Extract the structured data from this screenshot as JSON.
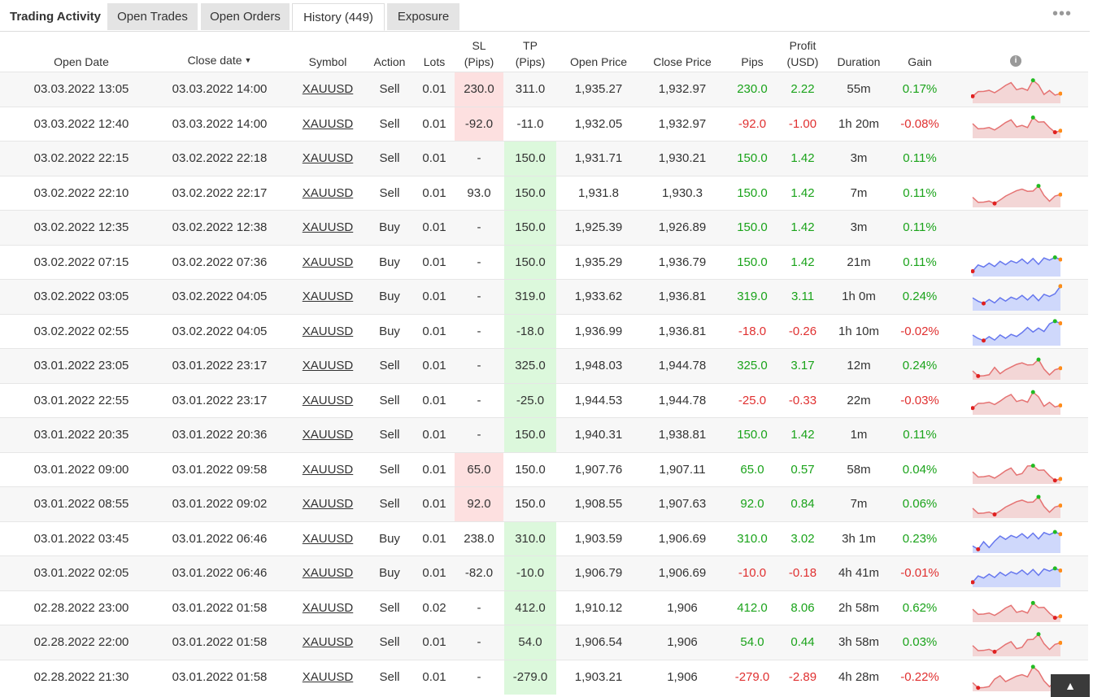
{
  "tabs": {
    "title": "Trading Activity",
    "items": [
      "Open Trades",
      "Open Orders",
      "History (449)",
      "Exposure"
    ],
    "active_index": 2,
    "more": "•••"
  },
  "table": {
    "headers": {
      "open_date": "Open Date",
      "close_date": "Close date",
      "symbol": "Symbol",
      "action": "Action",
      "lots": "Lots",
      "sl_1": "SL",
      "sl_2": "(Pips)",
      "tp_1": "TP",
      "tp_2": "(Pips)",
      "open_price": "Open Price",
      "close_price": "Close Price",
      "pips": "Pips",
      "profit_1": "Profit",
      "profit_2": "(USD)",
      "duration": "Duration",
      "gain": "Gain",
      "info": "i"
    },
    "sort_indicator": "▼",
    "rows": [
      {
        "open": "03.03.2022 13:05",
        "close": "03.03.2022 14:00",
        "symbol": "XAUUSD",
        "action": "Sell",
        "lots": "0.01",
        "sl": "230.0",
        "tp": "311.0",
        "open_price": "1,935.27",
        "close_price": "1,932.97",
        "pips": "230.0",
        "profit": "2.22",
        "duration": "55m",
        "gain": "0.17%",
        "sl_hl": "red",
        "tp_hl": "",
        "sign": "pos",
        "chart": "sell"
      },
      {
        "open": "03.03.2022 12:40",
        "close": "03.03.2022 14:00",
        "symbol": "XAUUSD",
        "action": "Sell",
        "lots": "0.01",
        "sl": "-92.0",
        "tp": "-11.0",
        "open_price": "1,932.05",
        "close_price": "1,932.97",
        "pips": "-92.0",
        "profit": "-1.00",
        "duration": "1h 20m",
        "gain": "-0.08%",
        "sl_hl": "red",
        "tp_hl": "",
        "sign": "neg",
        "chart": "sell"
      },
      {
        "open": "03.02.2022 22:15",
        "close": "03.02.2022 22:18",
        "symbol": "XAUUSD",
        "action": "Sell",
        "lots": "0.01",
        "sl": "-",
        "tp": "150.0",
        "open_price": "1,931.71",
        "close_price": "1,930.21",
        "pips": "150.0",
        "profit": "1.42",
        "duration": "3m",
        "gain": "0.11%",
        "sl_hl": "",
        "tp_hl": "green",
        "sign": "pos",
        "chart": ""
      },
      {
        "open": "03.02.2022 22:10",
        "close": "03.02.2022 22:17",
        "symbol": "XAUUSD",
        "action": "Sell",
        "lots": "0.01",
        "sl": "93.0",
        "tp": "150.0",
        "open_price": "1,931.8",
        "close_price": "1,930.3",
        "pips": "150.0",
        "profit": "1.42",
        "duration": "7m",
        "gain": "0.11%",
        "sl_hl": "",
        "tp_hl": "green",
        "sign": "pos",
        "chart": "sell"
      },
      {
        "open": "03.02.2022 12:35",
        "close": "03.02.2022 12:38",
        "symbol": "XAUUSD",
        "action": "Buy",
        "lots": "0.01",
        "sl": "-",
        "tp": "150.0",
        "open_price": "1,925.39",
        "close_price": "1,926.89",
        "pips": "150.0",
        "profit": "1.42",
        "duration": "3m",
        "gain": "0.11%",
        "sl_hl": "",
        "tp_hl": "green",
        "sign": "pos",
        "chart": ""
      },
      {
        "open": "03.02.2022 07:15",
        "close": "03.02.2022 07:36",
        "symbol": "XAUUSD",
        "action": "Buy",
        "lots": "0.01",
        "sl": "-",
        "tp": "150.0",
        "open_price": "1,935.29",
        "close_price": "1,936.79",
        "pips": "150.0",
        "profit": "1.42",
        "duration": "21m",
        "gain": "0.11%",
        "sl_hl": "",
        "tp_hl": "green",
        "sign": "pos",
        "chart": "buy"
      },
      {
        "open": "03.02.2022 03:05",
        "close": "03.02.2022 04:05",
        "symbol": "XAUUSD",
        "action": "Buy",
        "lots": "0.01",
        "sl": "-",
        "tp": "319.0",
        "open_price": "1,933.62",
        "close_price": "1,936.81",
        "pips": "319.0",
        "profit": "3.11",
        "duration": "1h 0m",
        "gain": "0.24%",
        "sl_hl": "",
        "tp_hl": "green",
        "sign": "pos",
        "chart": "buy"
      },
      {
        "open": "03.02.2022 02:55",
        "close": "03.02.2022 04:05",
        "symbol": "XAUUSD",
        "action": "Buy",
        "lots": "0.01",
        "sl": "-",
        "tp": "-18.0",
        "open_price": "1,936.99",
        "close_price": "1,936.81",
        "pips": "-18.0",
        "profit": "-0.26",
        "duration": "1h 10m",
        "gain": "-0.02%",
        "sl_hl": "",
        "tp_hl": "green",
        "sign": "neg",
        "chart": "buy"
      },
      {
        "open": "03.01.2022 23:05",
        "close": "03.01.2022 23:17",
        "symbol": "XAUUSD",
        "action": "Sell",
        "lots": "0.01",
        "sl": "-",
        "tp": "325.0",
        "open_price": "1,948.03",
        "close_price": "1,944.78",
        "pips": "325.0",
        "profit": "3.17",
        "duration": "12m",
        "gain": "0.24%",
        "sl_hl": "",
        "tp_hl": "green",
        "sign": "pos",
        "chart": "sell"
      },
      {
        "open": "03.01.2022 22:55",
        "close": "03.01.2022 23:17",
        "symbol": "XAUUSD",
        "action": "Sell",
        "lots": "0.01",
        "sl": "-",
        "tp": "-25.0",
        "open_price": "1,944.53",
        "close_price": "1,944.78",
        "pips": "-25.0",
        "profit": "-0.33",
        "duration": "22m",
        "gain": "-0.03%",
        "sl_hl": "",
        "tp_hl": "green",
        "sign": "neg",
        "chart": "sell"
      },
      {
        "open": "03.01.2022 20:35",
        "close": "03.01.2022 20:36",
        "symbol": "XAUUSD",
        "action": "Sell",
        "lots": "0.01",
        "sl": "-",
        "tp": "150.0",
        "open_price": "1,940.31",
        "close_price": "1,938.81",
        "pips": "150.0",
        "profit": "1.42",
        "duration": "1m",
        "gain": "0.11%",
        "sl_hl": "",
        "tp_hl": "green",
        "sign": "pos",
        "chart": ""
      },
      {
        "open": "03.01.2022 09:00",
        "close": "03.01.2022 09:58",
        "symbol": "XAUUSD",
        "action": "Sell",
        "lots": "0.01",
        "sl": "65.0",
        "tp": "150.0",
        "open_price": "1,907.76",
        "close_price": "1,907.11",
        "pips": "65.0",
        "profit": "0.57",
        "duration": "58m",
        "gain": "0.04%",
        "sl_hl": "red",
        "tp_hl": "",
        "sign": "pos",
        "chart": "sell"
      },
      {
        "open": "03.01.2022 08:55",
        "close": "03.01.2022 09:02",
        "symbol": "XAUUSD",
        "action": "Sell",
        "lots": "0.01",
        "sl": "92.0",
        "tp": "150.0",
        "open_price": "1,908.55",
        "close_price": "1,907.63",
        "pips": "92.0",
        "profit": "0.84",
        "duration": "7m",
        "gain": "0.06%",
        "sl_hl": "red",
        "tp_hl": "",
        "sign": "pos",
        "chart": "sell"
      },
      {
        "open": "03.01.2022 03:45",
        "close": "03.01.2022 06:46",
        "symbol": "XAUUSD",
        "action": "Buy",
        "lots": "0.01",
        "sl": "238.0",
        "tp": "310.0",
        "open_price": "1,903.59",
        "close_price": "1,906.69",
        "pips": "310.0",
        "profit": "3.02",
        "duration": "3h 1m",
        "gain": "0.23%",
        "sl_hl": "",
        "tp_hl": "green",
        "sign": "pos",
        "chart": "buy"
      },
      {
        "open": "03.01.2022 02:05",
        "close": "03.01.2022 06:46",
        "symbol": "XAUUSD",
        "action": "Buy",
        "lots": "0.01",
        "sl": "-82.0",
        "tp": "-10.0",
        "open_price": "1,906.79",
        "close_price": "1,906.69",
        "pips": "-10.0",
        "profit": "-0.18",
        "duration": "4h 41m",
        "gain": "-0.01%",
        "sl_hl": "",
        "tp_hl": "green",
        "sign": "neg",
        "chart": "buy"
      },
      {
        "open": "02.28.2022 23:00",
        "close": "03.01.2022 01:58",
        "symbol": "XAUUSD",
        "action": "Sell",
        "lots": "0.02",
        "sl": "-",
        "tp": "412.0",
        "open_price": "1,910.12",
        "close_price": "1,906",
        "pips": "412.0",
        "profit": "8.06",
        "duration": "2h 58m",
        "gain": "0.62%",
        "sl_hl": "",
        "tp_hl": "green",
        "sign": "pos",
        "chart": "sell"
      },
      {
        "open": "02.28.2022 22:00",
        "close": "03.01.2022 01:58",
        "symbol": "XAUUSD",
        "action": "Sell",
        "lots": "0.01",
        "sl": "-",
        "tp": "54.0",
        "open_price": "1,906.54",
        "close_price": "1,906",
        "pips": "54.0",
        "profit": "0.44",
        "duration": "3h 58m",
        "gain": "0.03%",
        "sl_hl": "",
        "tp_hl": "green",
        "sign": "pos",
        "chart": "sell"
      },
      {
        "open": "02.28.2022 21:30",
        "close": "03.01.2022 01:58",
        "symbol": "XAUUSD",
        "action": "Sell",
        "lots": "0.01",
        "sl": "-",
        "tp": "-279.0",
        "open_price": "1,903.21",
        "close_price": "1,906",
        "pips": "-279.0",
        "profit": "-2.89",
        "duration": "4h 28m",
        "gain": "-0.22%",
        "sl_hl": "",
        "tp_hl": "green",
        "sign": "neg",
        "chart": "sell"
      }
    ]
  },
  "colors": {
    "positive": "#1aa31a",
    "negative": "#e03030",
    "sell_line": "#e57373",
    "sell_fill": "#f3d6d6",
    "buy_line": "#6677ee",
    "buy_fill": "#cfd8fb",
    "marker_high": "#22bb22",
    "marker_low": "#e02020",
    "marker_end": "#ff8c1a"
  },
  "scroll_top_icon": "arrow-up-icon"
}
